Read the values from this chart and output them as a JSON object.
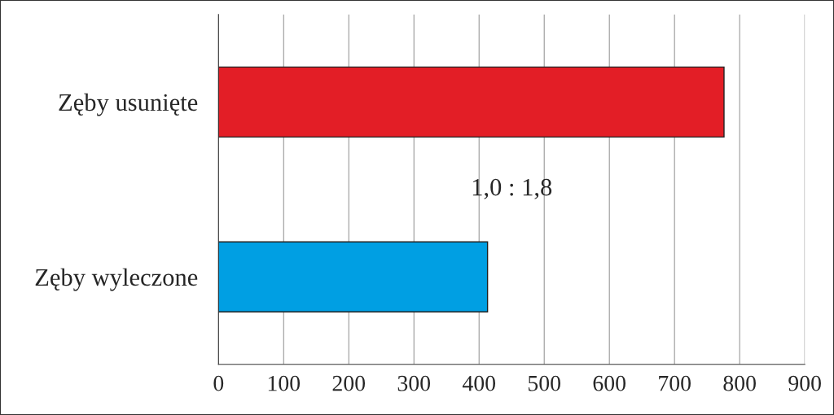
{
  "chart_data": {
    "type": "bar",
    "orientation": "horizontal",
    "categories": [
      "Zęby usunięte",
      "Zęby wyleczone"
    ],
    "values": [
      776,
      413
    ],
    "colors": [
      "#e31e26",
      "#009fe3"
    ],
    "xlim": [
      0,
      900
    ],
    "xticks": [
      0,
      100,
      200,
      300,
      400,
      500,
      600,
      700,
      800,
      900
    ],
    "grid": "x",
    "annotations": [
      {
        "text": "1,0 : 1,8"
      }
    ]
  }
}
